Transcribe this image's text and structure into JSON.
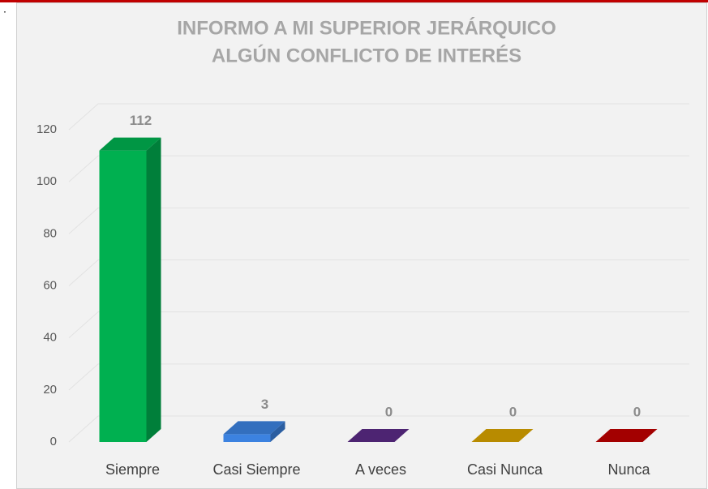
{
  "page_mark": ".",
  "chart_data": {
    "type": "bar3d",
    "title": [
      "INFORMO A MI SUPERIOR JERÁRQUICO",
      "ALGÚN  CONFLICTO DE INTERÉS"
    ],
    "categories": [
      "Siempre",
      "Casi Siempre",
      "A veces",
      "Casi Nunca",
      "Nunca"
    ],
    "values": [
      112,
      3,
      0,
      0,
      0
    ],
    "colors": [
      "#00b050",
      "#3c82e0",
      "#5b2a86",
      "#d9a300",
      "#c00000"
    ],
    "ylim": [
      0,
      120
    ],
    "yticks": [
      0,
      20,
      40,
      60,
      80,
      100,
      120
    ],
    "grid": true
  }
}
